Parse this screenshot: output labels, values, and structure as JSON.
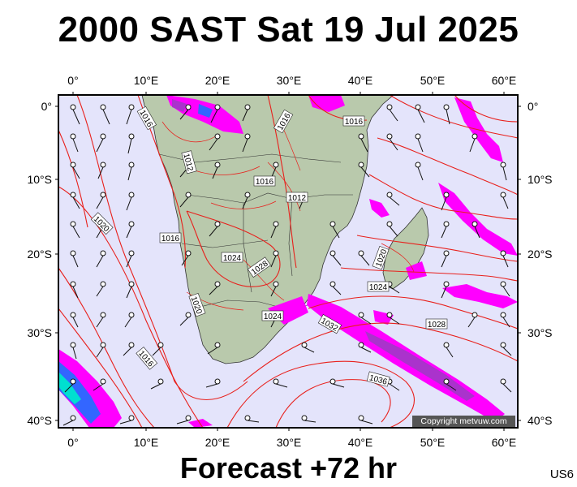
{
  "title": "2000 SAST Sat 19 Jul 2025",
  "footer": "Forecast +72 hr",
  "code": "US6",
  "copyright": "Copyright metvuw.com",
  "lon_labels": [
    "0°",
    "10°E",
    "20°E",
    "30°E",
    "40°E",
    "50°E",
    "60°E"
  ],
  "lat_labels": [
    "0°",
    "10°S",
    "20°S",
    "30°S",
    "40°S"
  ],
  "isobar_labels": [
    "1016",
    "1016",
    "1016",
    "1012",
    "1016",
    "1016",
    "1012",
    "1020",
    "1016",
    "1024",
    "1028",
    "1020",
    "1024",
    "1032",
    "1020",
    "1024",
    "1028",
    "1036"
  ],
  "colors": {
    "ocean": "#e4e4fb",
    "land": "#b9c9ac",
    "isobar": "#e8201c",
    "rain_heavy": "#ff00ff",
    "rain_med": "#aa33cc",
    "rain_core": "#3366ff",
    "rain_peak": "#00e0d0"
  }
}
